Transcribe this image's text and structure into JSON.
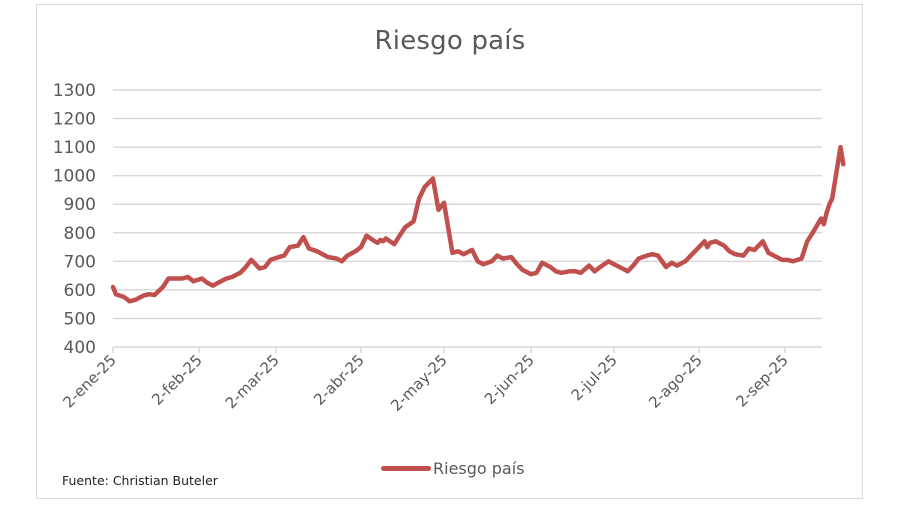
{
  "chart_data": {
    "type": "line",
    "title": "Riesgo país",
    "xlabel": "",
    "ylabel": "",
    "ylim": [
      400,
      1300
    ],
    "yticks": [
      400,
      500,
      600,
      700,
      800,
      900,
      1000,
      1100,
      1200,
      1300
    ],
    "xtick_labels": [
      "2-ene-25",
      "2-feb-25",
      "2-mar-25",
      "2-abr-25",
      "2-may-25",
      "2-jun-25",
      "2-jul-25",
      "2-ago-25",
      "2-sep-25"
    ],
    "grid": "horizontal",
    "legend_position": "bottom",
    "series": [
      {
        "name": "Riesgo país",
        "color": "#c0504d",
        "x": [
          "2025-01-02",
          "2025-01-03",
          "2025-01-06",
          "2025-01-08",
          "2025-01-10",
          "2025-01-13",
          "2025-01-15",
          "2025-01-17",
          "2025-01-20",
          "2025-01-22",
          "2025-01-24",
          "2025-01-27",
          "2025-01-29",
          "2025-01-31",
          "2025-02-03",
          "2025-02-05",
          "2025-02-07",
          "2025-02-10",
          "2025-02-12",
          "2025-02-14",
          "2025-02-17",
          "2025-02-19",
          "2025-02-21",
          "2025-02-24",
          "2025-02-26",
          "2025-02-28",
          "2025-03-03",
          "2025-03-05",
          "2025-03-07",
          "2025-03-10",
          "2025-03-12",
          "2025-03-14",
          "2025-03-17",
          "2025-03-19",
          "2025-03-21",
          "2025-03-24",
          "2025-03-26",
          "2025-03-28",
          "2025-03-31",
          "2025-04-02",
          "2025-04-04",
          "2025-04-07",
          "2025-04-08",
          "2025-04-09",
          "2025-04-10",
          "2025-04-11",
          "2025-04-14",
          "2025-04-16",
          "2025-04-18",
          "2025-04-21",
          "2025-04-23",
          "2025-04-25",
          "2025-04-28",
          "2025-04-30",
          "2025-05-02",
          "2025-05-05",
          "2025-05-07",
          "2025-05-09",
          "2025-05-12",
          "2025-05-14",
          "2025-05-16",
          "2025-05-19",
          "2025-05-21",
          "2025-05-23",
          "2025-05-26",
          "2025-05-28",
          "2025-05-30",
          "2025-06-02",
          "2025-06-04",
          "2025-06-06",
          "2025-06-09",
          "2025-06-11",
          "2025-06-13",
          "2025-06-16",
          "2025-06-18",
          "2025-06-20",
          "2025-06-23",
          "2025-06-25",
          "2025-06-27",
          "2025-06-30",
          "2025-07-02",
          "2025-07-04",
          "2025-07-07",
          "2025-07-09",
          "2025-07-11",
          "2025-07-14",
          "2025-07-16",
          "2025-07-18",
          "2025-07-21",
          "2025-07-23",
          "2025-07-25",
          "2025-07-28",
          "2025-07-30",
          "2025-08-01",
          "2025-08-04",
          "2025-08-05",
          "2025-08-06",
          "2025-08-08",
          "2025-08-11",
          "2025-08-13",
          "2025-08-15",
          "2025-08-18",
          "2025-08-20",
          "2025-08-22",
          "2025-08-25",
          "2025-08-27",
          "2025-08-29",
          "2025-09-01",
          "2025-09-03",
          "2025-09-05",
          "2025-09-08",
          "2025-09-09",
          "2025-09-10",
          "2025-09-12",
          "2025-09-15",
          "2025-09-16",
          "2025-09-17",
          "2025-09-18",
          "2025-09-19",
          "2025-09-22",
          "2025-09-23"
        ],
        "values": [
          610,
          585,
          575,
          560,
          565,
          580,
          585,
          582,
          610,
          640,
          640,
          640,
          645,
          630,
          640,
          625,
          615,
          630,
          640,
          645,
          660,
          680,
          705,
          675,
          680,
          705,
          715,
          720,
          750,
          755,
          785,
          745,
          735,
          725,
          715,
          710,
          700,
          720,
          735,
          750,
          790,
          770,
          765,
          775,
          770,
          780,
          760,
          790,
          820,
          840,
          920,
          960,
          990,
          880,
          905,
          730,
          735,
          725,
          740,
          700,
          690,
          700,
          720,
          710,
          715,
          690,
          670,
          655,
          660,
          695,
          680,
          665,
          660,
          665,
          665,
          660,
          685,
          665,
          680,
          700,
          690,
          680,
          665,
          685,
          710,
          720,
          725,
          720,
          680,
          695,
          685,
          700,
          720,
          740,
          770,
          750,
          765,
          770,
          755,
          735,
          725,
          720,
          745,
          740,
          770,
          730,
          720,
          705,
          705,
          700,
          710,
          740,
          770,
          800,
          850,
          830,
          870,
          900,
          920,
          1100,
          1040
        ]
      }
    ]
  },
  "chart": {
    "title": "Riesgo país",
    "legend_label": "Riesgo país",
    "source_note": "Fuente: Christian Buteler"
  }
}
